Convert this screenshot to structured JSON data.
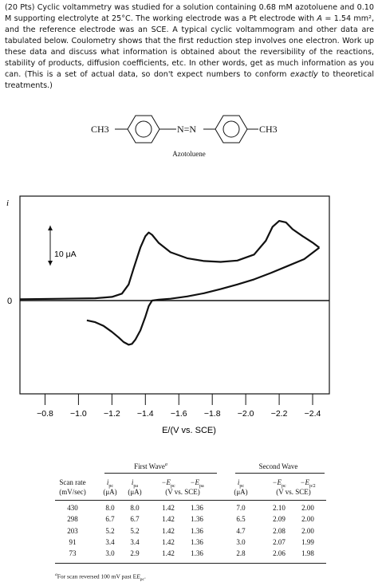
{
  "problem": {
    "p1": "(20 Pts) Cyclic voltammetry was studied for a solution containing 0.68 mM azotoluene and 0.10 M supporting electrolyte at 25°C. The working electrode was a Pt electrode with ",
    "area_symbol": "A",
    "p2": " = 1.54 mm², and the reference electrode was an SCE. A typical cyclic voltammogram and other data are tabulated below. Coulometry shows that the first reduction step involves one electron. Work up these data and discuss what information is obtained about the reversibility of the reactions, stability of products, diffusion coefficients, etc. In other words, get as much information as you can. (This is a set of actual data, so don't expect numbers to conform ",
    "p3_italic": "exactly",
    "p4": " to theoretical treatments.)"
  },
  "molecule": {
    "left_group": "CH3",
    "right_group": "CH3",
    "azo": "N=N",
    "name": "Azotoluene"
  },
  "chart_data": {
    "type": "line",
    "ylabel": "i",
    "zero_label": "0",
    "scale_bar_label": "10 μA",
    "xlabel": "E/(V vs. SCE)",
    "x_ticks": [
      "−0.8",
      "−1.0",
      "−1.2",
      "−1.4",
      "−1.6",
      "−1.8",
      "−2.0",
      "−2.2",
      "−2.4"
    ],
    "x_tick_values": [
      -0.8,
      -1.0,
      -1.2,
      -1.4,
      -1.6,
      -1.8,
      -2.0,
      -2.2,
      -2.4
    ],
    "xlim": [
      -0.65,
      -2.5
    ],
    "ylim": [
      -11,
      22
    ],
    "grid": false,
    "forward_scan": {
      "x": [
        -0.65,
        -0.9,
        -1.1,
        -1.2,
        -1.26,
        -1.3,
        -1.33,
        -1.37,
        -1.4,
        -1.42,
        -1.44,
        -1.48,
        -1.55,
        -1.65,
        -1.75,
        -1.85,
        -1.95,
        -2.05,
        -2.12,
        -2.16,
        -2.2,
        -2.24,
        -2.28,
        -2.34,
        -2.4,
        -2.44
      ],
      "y": [
        0.3,
        0.4,
        0.5,
        0.8,
        1.5,
        3.5,
        7.0,
        11.5,
        14.0,
        14.8,
        14.3,
        12.5,
        10.5,
        9.2,
        8.6,
        8.4,
        8.7,
        10.0,
        13.0,
        16.0,
        17.3,
        17.0,
        15.5,
        14.0,
        12.6,
        11.5
      ]
    },
    "reverse_scan": {
      "x": [
        -2.44,
        -2.35,
        -2.25,
        -2.15,
        -2.05,
        -1.95,
        -1.85,
        -1.75,
        -1.65,
        -1.55,
        -1.48,
        -1.44,
        -1.42,
        -1.4,
        -1.37,
        -1.34,
        -1.32,
        -1.3,
        -1.27,
        -1.24,
        -1.2,
        -1.15,
        -1.1,
        -1.05
      ],
      "y": [
        11.5,
        9.0,
        7.5,
        6.0,
        4.6,
        3.5,
        2.5,
        1.6,
        0.9,
        0.4,
        0.2,
        0.0,
        -1.2,
        -3.5,
        -6.5,
        -8.5,
        -9.4,
        -9.6,
        -9.0,
        -8.0,
        -6.8,
        -5.5,
        -4.7,
        -4.3
      ]
    }
  },
  "table": {
    "first_wave_label": "First Wave",
    "first_wave_note": "a",
    "second_wave_label": "Second Wave",
    "headers_row1": [
      "Scan rate",
      "i",
      "i",
      "−E",
      "−E",
      "i",
      "−E",
      "−E"
    ],
    "headers_subs": [
      "",
      "pc",
      "pa",
      "pc",
      "pa",
      "pc",
      "pc",
      "p/2"
    ],
    "headers_row2": [
      "(mV/sec)",
      "(μA)",
      "(μA)",
      "(V vs. SCE)",
      "(μA)",
      "(V vs. SCE)"
    ],
    "rows": [
      [
        "430",
        "8.0",
        "8.0",
        "1.42",
        "1.36",
        "7.0",
        "2.10",
        "2.00"
      ],
      [
        "298",
        "6.7",
        "6.7",
        "1.42",
        "1.36",
        "6.5",
        "2.09",
        "2.00"
      ],
      [
        "203",
        "5.2",
        "5.2",
        "1.42",
        "1.36",
        "4.7",
        "2.08",
        "2.00"
      ],
      [
        "91",
        "3.4",
        "3.4",
        "1.42",
        "1.36",
        "3.0",
        "2.07",
        "1.99"
      ],
      [
        "73",
        "3.0",
        "2.9",
        "1.42",
        "1.36",
        "2.8",
        "2.06",
        "1.98"
      ]
    ],
    "footnote_mark": "a",
    "footnote": "For scan reversed 100 mV past E",
    "footnote_sub": "pc"
  }
}
